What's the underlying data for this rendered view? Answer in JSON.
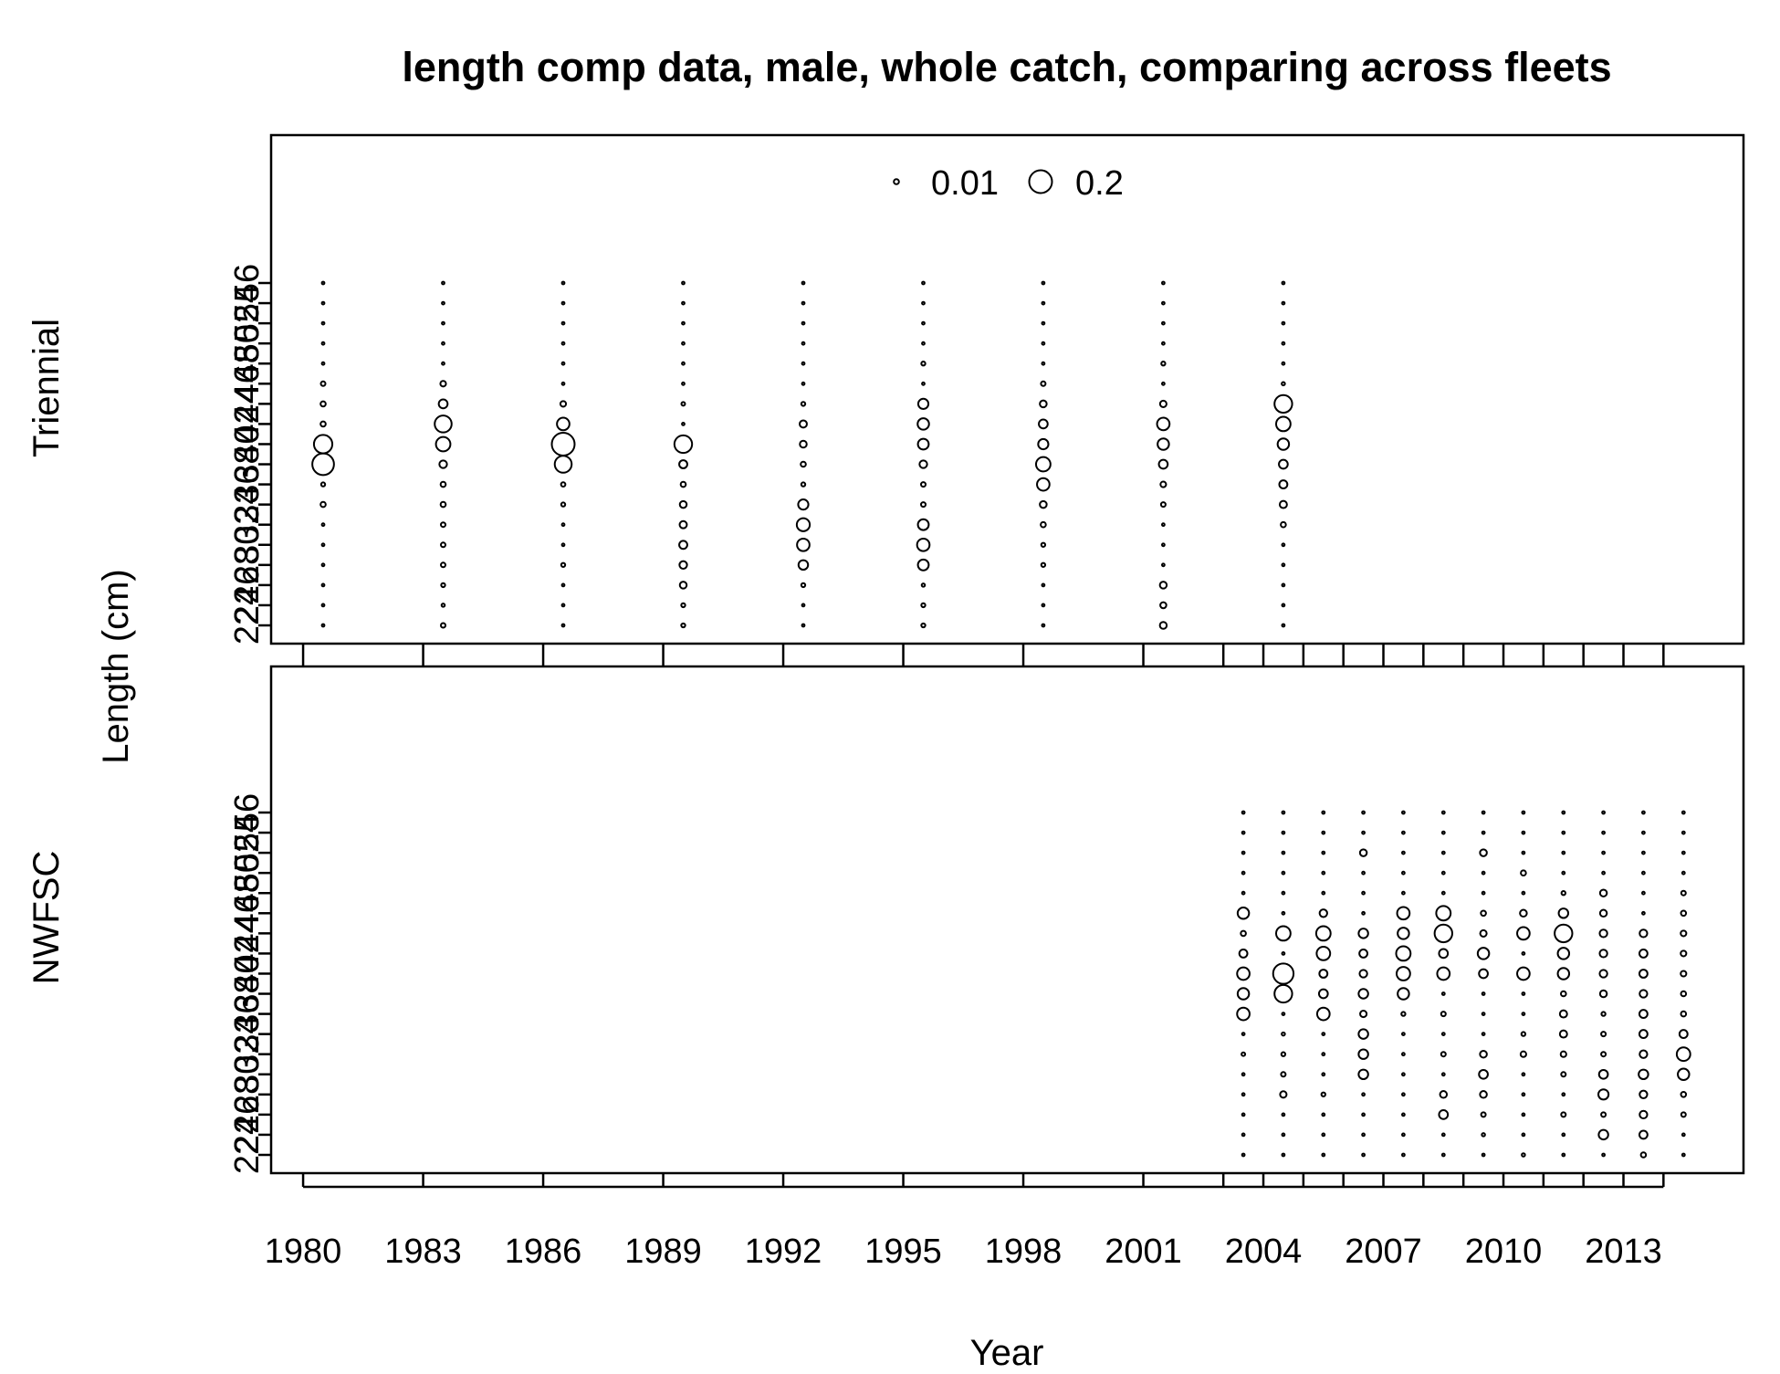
{
  "chart_data": {
    "type": "scatter",
    "subtype": "bubble",
    "title": "length comp data, male, whole catch, comparing across fleets",
    "xlabel": "Year",
    "ylabel": "Length (cm)",
    "x_ticks": [
      1980,
      1983,
      1986,
      1989,
      1992,
      1995,
      1998,
      2001,
      2004,
      2007,
      2010,
      2013
    ],
    "x_minor_ticks": [
      1980,
      1983,
      1986,
      1989,
      1992,
      1995,
      1998,
      2001,
      2003,
      2004,
      2005,
      2006,
      2007,
      2008,
      2009,
      2010,
      2011,
      2012,
      2013,
      2014
    ],
    "xlim": [
      1979.2,
      2016.0
    ],
    "y_ticks": [
      22,
      24,
      26,
      28,
      30,
      32,
      34,
      36,
      38,
      40,
      42,
      44,
      46,
      48,
      50,
      52,
      54,
      56
    ],
    "ylim": [
      22,
      56
    ],
    "legend": {
      "placement": "top-center",
      "entries": [
        {
          "label": "0.01",
          "value": 0.01
        },
        {
          "label": "0.2",
          "value": 0.2
        }
      ]
    },
    "panels": [
      {
        "name": "Triennial",
        "years": [
          1980.5,
          1983.5,
          1986.5,
          1989.5,
          1992.5,
          1995.5,
          1998.5,
          2001.5,
          2004.5
        ],
        "proportions": [
          [
            0.002,
            0.002,
            0.002,
            0.002,
            0.002,
            0.002,
            0.01,
            0.006,
            0.18,
            0.13,
            0.01,
            0.01,
            0.008,
            0.002,
            0.002,
            0.002,
            0.002,
            0.002
          ],
          [
            0.008,
            0.004,
            0.006,
            0.008,
            0.008,
            0.008,
            0.01,
            0.01,
            0.022,
            0.08,
            0.11,
            0.03,
            0.012,
            0.002,
            0.002,
            0.002,
            0.002,
            0.002
          ],
          [
            0.002,
            0.002,
            0.002,
            0.006,
            0.002,
            0.002,
            0.006,
            0.007,
            0.11,
            0.2,
            0.06,
            0.012,
            0.002,
            0.002,
            0.002,
            0.002,
            0.002,
            0.002
          ],
          [
            0.006,
            0.006,
            0.018,
            0.022,
            0.025,
            0.02,
            0.018,
            0.01,
            0.025,
            0.12,
            0.002,
            0.005,
            0.002,
            0.002,
            0.002,
            0.002,
            0.002,
            0.002
          ],
          [
            0.002,
            0.002,
            0.006,
            0.035,
            0.06,
            0.065,
            0.04,
            0.006,
            0.01,
            0.018,
            0.02,
            0.006,
            0.002,
            0.002,
            0.002,
            0.002,
            0.002,
            0.002
          ],
          [
            0.006,
            0.006,
            0.004,
            0.045,
            0.06,
            0.045,
            0.008,
            0.008,
            0.022,
            0.045,
            0.05,
            0.04,
            0.002,
            0.006,
            0.002,
            0.002,
            0.002,
            0.002
          ],
          [
            0.002,
            0.002,
            0.002,
            0.006,
            0.006,
            0.01,
            0.018,
            0.06,
            0.08,
            0.04,
            0.03,
            0.018,
            0.008,
            0.002,
            0.002,
            0.002,
            0.002,
            0.002
          ],
          [
            0.018,
            0.014,
            0.018,
            0.002,
            0.002,
            0.002,
            0.008,
            0.012,
            0.03,
            0.05,
            0.06,
            0.016,
            0.002,
            0.006,
            0.002,
            0.002,
            0.002,
            0.002
          ],
          [
            0.002,
            0.002,
            0.002,
            0.002,
            0.002,
            0.01,
            0.02,
            0.025,
            0.03,
            0.05,
            0.08,
            0.12,
            0.004,
            0.002,
            0.002,
            0.002,
            0.002,
            0.002
          ]
        ]
      },
      {
        "name": "NWFSC",
        "years": [
          2003.5,
          2004.5,
          2005.5,
          2006.5,
          2007.5,
          2008.5,
          2009.5,
          2010.5,
          2011.5,
          2012.5,
          2013.5,
          2014.5
        ],
        "proportions": [
          [
            0.002,
            0.002,
            0.002,
            0.002,
            0.002,
            0.005,
            0.002,
            0.06,
            0.05,
            0.06,
            0.025,
            0.01,
            0.05,
            0.002,
            0.002,
            0.002,
            0.002,
            0.002
          ],
          [
            0.002,
            0.002,
            0.002,
            0.016,
            0.008,
            0.006,
            0.004,
            0.002,
            0.12,
            0.16,
            0.002,
            0.08,
            0.002,
            0.002,
            0.002,
            0.002,
            0.002,
            0.002
          ],
          [
            0.002,
            0.002,
            0.002,
            0.006,
            0.002,
            0.002,
            0.002,
            0.06,
            0.03,
            0.025,
            0.07,
            0.08,
            0.022,
            0.002,
            0.002,
            0.002,
            0.002,
            0.002
          ],
          [
            0.002,
            0.002,
            0.002,
            0.002,
            0.035,
            0.035,
            0.035,
            0.016,
            0.035,
            0.022,
            0.025,
            0.035,
            0.002,
            0.002,
            0.002,
            0.018,
            0.002,
            0.002
          ],
          [
            0.002,
            0.002,
            0.002,
            0.002,
            0.002,
            0.002,
            0.002,
            0.006,
            0.05,
            0.07,
            0.08,
            0.05,
            0.06,
            0.002,
            0.002,
            0.002,
            0.002,
            0.002
          ],
          [
            0.002,
            0.002,
            0.03,
            0.018,
            0.002,
            0.008,
            0.002,
            0.008,
            0.002,
            0.06,
            0.03,
            0.12,
            0.08,
            0.002,
            0.002,
            0.002,
            0.002,
            0.002
          ],
          [
            0.002,
            0.004,
            0.008,
            0.018,
            0.03,
            0.018,
            0.002,
            0.002,
            0.002,
            0.03,
            0.05,
            0.016,
            0.01,
            0.002,
            0.002,
            0.018,
            0.002,
            0.002
          ],
          [
            0.004,
            0.002,
            0.002,
            0.002,
            0.002,
            0.012,
            0.006,
            0.002,
            0.002,
            0.06,
            0.002,
            0.06,
            0.018,
            0.002,
            0.01,
            0.002,
            0.002,
            0.002
          ],
          [
            0.002,
            0.002,
            0.008,
            0.002,
            0.008,
            0.012,
            0.02,
            0.02,
            0.01,
            0.05,
            0.05,
            0.12,
            0.035,
            0.006,
            0.002,
            0.002,
            0.002,
            0.002
          ],
          [
            0.002,
            0.035,
            0.008,
            0.04,
            0.03,
            0.008,
            0.008,
            0.006,
            0.018,
            0.022,
            0.022,
            0.022,
            0.018,
            0.018,
            0.002,
            0.002,
            0.002,
            0.002
          ],
          [
            0.01,
            0.025,
            0.022,
            0.022,
            0.035,
            0.022,
            0.025,
            0.025,
            0.022,
            0.025,
            0.025,
            0.022,
            0.002,
            0.002,
            0.002,
            0.002,
            0.002,
            0.002
          ],
          [
            0.002,
            0.002,
            0.008,
            0.01,
            0.05,
            0.07,
            0.025,
            0.01,
            0.01,
            0.012,
            0.012,
            0.012,
            0.01,
            0.008,
            0.002,
            0.002,
            0.002,
            0.002
          ]
        ]
      }
    ]
  }
}
